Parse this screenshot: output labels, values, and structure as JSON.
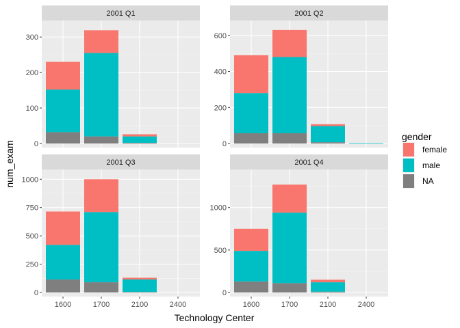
{
  "chart_data": {
    "type": "bar",
    "stacked": true,
    "facet_scales": "free_y",
    "xlabel": "Technology Center",
    "ylabel": "num_exam",
    "categories": [
      "1600",
      "1700",
      "2100",
      "2400"
    ],
    "legend": {
      "title": "gender",
      "placement": "right",
      "entries": [
        {
          "label": "female",
          "color": "#F8766D"
        },
        {
          "label": "male",
          "color": "#00BFC4"
        },
        {
          "label": "NA",
          "color": "#7F7F7F"
        }
      ]
    },
    "stack_order_bottom_to_top": [
      "NA",
      "male",
      "female"
    ],
    "panels": [
      {
        "title": "2001 Q1",
        "ylim": [
          0,
          335
        ],
        "yticks": [
          0,
          100,
          200,
          300
        ],
        "series": {
          "NA": [
            32,
            20,
            2,
            0
          ],
          "male": [
            120,
            235,
            18,
            0
          ],
          "female": [
            78,
            64,
            6,
            0
          ]
        }
      },
      {
        "title": "2001 Q2",
        "ylim": [
          0,
          660
        ],
        "yticks": [
          0,
          200,
          400,
          600
        ],
        "series": {
          "NA": [
            57,
            57,
            7,
            0
          ],
          "male": [
            223,
            423,
            90,
            3
          ],
          "female": [
            210,
            150,
            10,
            0
          ]
        }
      },
      {
        "title": "2001 Q3",
        "ylim": [
          0,
          1050
        ],
        "yticks": [
          0,
          250,
          500,
          750,
          1000
        ],
        "series": {
          "NA": [
            115,
            90,
            5,
            0
          ],
          "male": [
            305,
            620,
            110,
            0
          ],
          "female": [
            295,
            290,
            15,
            0
          ]
        }
      },
      {
        "title": "2001 Q4",
        "ylim": [
          0,
          1400
        ],
        "yticks": [
          0,
          500,
          1000
        ],
        "series": {
          "NA": [
            130,
            110,
            10,
            0
          ],
          "male": [
            360,
            830,
            110,
            0
          ],
          "female": [
            260,
            330,
            30,
            0
          ]
        }
      }
    ],
    "grid": true
  }
}
